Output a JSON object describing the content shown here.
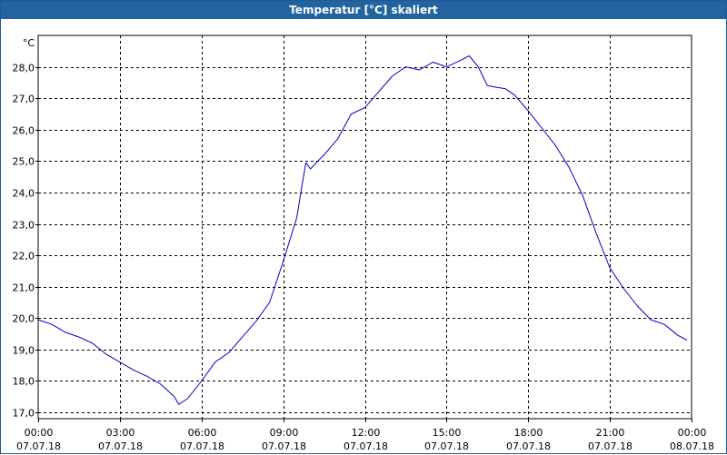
{
  "window": {
    "title": "Temperatur [°C] skaliert"
  },
  "chart_data": {
    "type": "line",
    "title": "Temperatur [°C] skaliert",
    "ylabel": "°C",
    "xlabel": "",
    "ylim": [
      16.8,
      29.0
    ],
    "xlim": [
      "07.07.18 00:00",
      "08.07.18 00:00"
    ],
    "grid": true,
    "x_tick_labels": [
      {
        "time": "00:00",
        "date": "07.07.18"
      },
      {
        "time": "03:00",
        "date": "07.07.18"
      },
      {
        "time": "06:00",
        "date": "07.07.18"
      },
      {
        "time": "09:00",
        "date": "07.07.18"
      },
      {
        "time": "12:00",
        "date": "07.07.18"
      },
      {
        "time": "15:00",
        "date": "07.07.18"
      },
      {
        "time": "18:00",
        "date": "07.07.18"
      },
      {
        "time": "21:00",
        "date": "07.07.18"
      },
      {
        "time": "00:00",
        "date": "08.07.18"
      }
    ],
    "y_tick_labels": [
      "28,0",
      "27,0",
      "26,0",
      "25,0",
      "24,0",
      "23,0",
      "22,0",
      "21,0",
      "20,0",
      "19,0",
      "18,0",
      "17,0"
    ],
    "y_tick_values": [
      28,
      27,
      26,
      25,
      24,
      23,
      22,
      21,
      20,
      19,
      18,
      17
    ],
    "series": [
      {
        "color": "#0000cc",
        "x": [
          "00:00",
          "00:30",
          "01:00",
          "01:30",
          "02:00",
          "02:30",
          "03:00",
          "03:30",
          "04:00",
          "04:30",
          "05:00",
          "05:10",
          "05:30",
          "06:00",
          "06:30",
          "07:00",
          "07:30",
          "08:00",
          "08:30",
          "09:00",
          "09:30",
          "09:40",
          "09:50",
          "10:00",
          "10:30",
          "11:00",
          "11:30",
          "12:00",
          "12:30",
          "13:00",
          "13:30",
          "14:00",
          "14:30",
          "15:00",
          "15:30",
          "15:50",
          "16:10",
          "16:30",
          "16:50",
          "17:10",
          "17:30",
          "18:00",
          "18:30",
          "19:00",
          "19:30",
          "20:00",
          "20:30",
          "21:00",
          "21:30",
          "22:00",
          "22:30",
          "23:00",
          "23:30",
          "23:50"
        ],
        "y": [
          19.95,
          19.8,
          19.55,
          19.4,
          19.2,
          18.85,
          18.6,
          18.35,
          18.15,
          17.9,
          17.5,
          17.25,
          17.45,
          18.0,
          18.6,
          18.9,
          19.4,
          19.9,
          20.5,
          21.8,
          23.2,
          24.1,
          24.95,
          24.75,
          25.2,
          25.7,
          26.5,
          26.7,
          27.2,
          27.7,
          28.0,
          27.9,
          28.15,
          28.0,
          28.2,
          28.35,
          28.0,
          27.4,
          27.35,
          27.3,
          27.1,
          26.6,
          26.05,
          25.5,
          24.8,
          23.9,
          22.7,
          21.6,
          20.95,
          20.4,
          19.95,
          19.8,
          19.45,
          19.3
        ]
      }
    ]
  }
}
